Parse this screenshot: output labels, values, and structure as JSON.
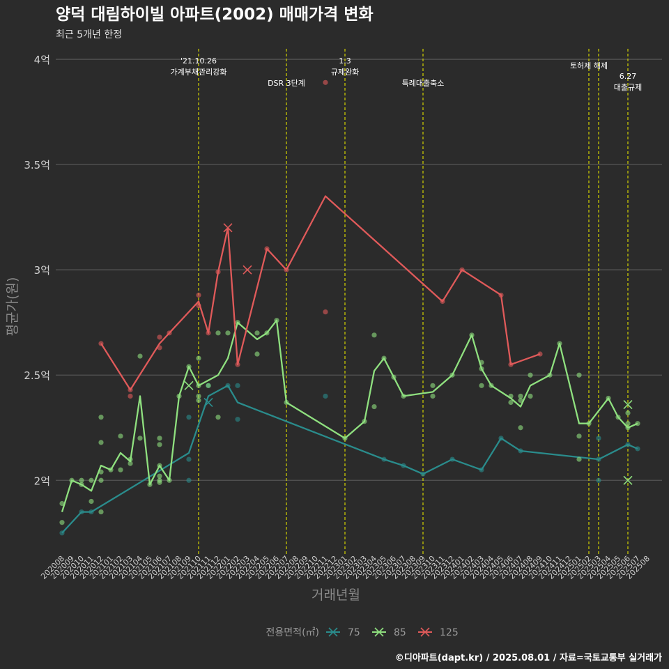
{
  "chart_data": {
    "type": "line",
    "title": "양덕 대림하이빌 아파트(2002) 매매가격 변화",
    "subtitle": "최근 5개년 한정",
    "xlabel": "거래년월",
    "ylabel": "평균가(원)",
    "caption": "©디아파트(dapt.kr) / 2025.08.01 / 자료=국토교통부 실거래가",
    "legend_title": "전용면적(㎡)",
    "legend_position": "bottom",
    "ylim": [
      1.65,
      4.05
    ],
    "y_ticks": [
      {
        "value": 2,
        "label": "2억"
      },
      {
        "value": 2.5,
        "label": "2.5억"
      },
      {
        "value": 3,
        "label": "3억"
      },
      {
        "value": 3.5,
        "label": "3.5억"
      },
      {
        "value": 4,
        "label": "4억"
      }
    ],
    "x_categories": [
      "202008",
      "202009",
      "202010",
      "202011",
      "202012",
      "202101",
      "202102",
      "202103",
      "202104",
      "202105",
      "202106",
      "202107",
      "202108",
      "202109",
      "202110",
      "202111",
      "202112",
      "202201",
      "202202",
      "202203",
      "202204",
      "202205",
      "202206",
      "202207",
      "202208",
      "202209",
      "202210",
      "202211",
      "202212",
      "202301",
      "202302",
      "202303",
      "202304",
      "202305",
      "202306",
      "202307",
      "202308",
      "202309",
      "202310",
      "202311",
      "202312",
      "202401",
      "202402",
      "202403",
      "202404",
      "202405",
      "202406",
      "202407",
      "202408",
      "202409",
      "202410",
      "202411",
      "202412",
      "202501",
      "202502",
      "202503",
      "202504",
      "202505",
      "202506",
      "202507",
      "202508"
    ],
    "grid": true,
    "events": [
      {
        "x": "202110",
        "lines": [
          "'21.10.26",
          "가계부채관리강화"
        ],
        "level": 0
      },
      {
        "x": "202207",
        "lines": [
          "DSR 3단계"
        ],
        "level": 2
      },
      {
        "x": "202301",
        "lines": [
          "1.3",
          "규제완화"
        ],
        "level": 0
      },
      {
        "x": "202309",
        "lines": [
          "특례대출축소"
        ],
        "level": 2
      },
      {
        "x": "202502",
        "lines": [
          "토허제 해제"
        ],
        "level": 1
      },
      {
        "x": "202503",
        "lines": [],
        "level": 1
      },
      {
        "x": "202506",
        "lines": [
          "6.27",
          "대출규제"
        ],
        "level": 3
      }
    ],
    "series": [
      {
        "name": "75",
        "color": "#2a8c8c",
        "line": [
          [
            "202008",
            1.75
          ],
          [
            "202010",
            1.85
          ],
          [
            "202011",
            1.85
          ],
          [
            "202109",
            2.13
          ],
          [
            "202111",
            2.4
          ],
          [
            "202201",
            2.45
          ],
          [
            "202202",
            2.37
          ],
          [
            "202305",
            2.1
          ],
          [
            "202307",
            2.07
          ],
          [
            "202309",
            2.03
          ],
          [
            "202312",
            2.1
          ],
          [
            "202403",
            2.05
          ],
          [
            "202405",
            2.2
          ],
          [
            "202407",
            2.14
          ],
          [
            "202503",
            2.1
          ],
          [
            "202506",
            2.17
          ],
          [
            "202507",
            2.15
          ]
        ],
        "points": [
          [
            "202008",
            1.75
          ],
          [
            "202010",
            1.85
          ],
          [
            "202011",
            1.85
          ],
          [
            "202109",
            2.0
          ],
          [
            "202109",
            2.1
          ],
          [
            "202109",
            2.3
          ],
          [
            "202111",
            2.45
          ],
          [
            "202201",
            2.45
          ],
          [
            "202202",
            2.29
          ],
          [
            "202202",
            2.45
          ],
          [
            "202211",
            2.4
          ],
          [
            "202305",
            2.1
          ],
          [
            "202307",
            2.07
          ],
          [
            "202309",
            2.03
          ],
          [
            "202312",
            2.1
          ],
          [
            "202403",
            2.05
          ],
          [
            "202405",
            2.2
          ],
          [
            "202407",
            2.14
          ],
          [
            "202503",
            2.0
          ],
          [
            "202503",
            2.1
          ],
          [
            "202503",
            2.2
          ],
          [
            "202506",
            2.17
          ],
          [
            "202507",
            2.15
          ]
        ],
        "crosses": [
          [
            "202111",
            2.37
          ]
        ]
      },
      {
        "name": "85",
        "color": "#8fe07f",
        "line": [
          [
            "202008",
            1.85
          ],
          [
            "202009",
            2.0
          ],
          [
            "202010",
            1.98
          ],
          [
            "202011",
            1.95
          ],
          [
            "202012",
            2.07
          ],
          [
            "202101",
            2.05
          ],
          [
            "202102",
            2.13
          ],
          [
            "202103",
            2.09
          ],
          [
            "202104",
            2.4
          ],
          [
            "202105",
            1.98
          ],
          [
            "202106",
            2.07
          ],
          [
            "202107",
            2.0
          ],
          [
            "202108",
            2.4
          ],
          [
            "202109",
            2.54
          ],
          [
            "202110",
            2.45
          ],
          [
            "202112",
            2.5
          ],
          [
            "202201",
            2.58
          ],
          [
            "202202",
            2.75
          ],
          [
            "202204",
            2.67
          ],
          [
            "202205",
            2.7
          ],
          [
            "202206",
            2.76
          ],
          [
            "202207",
            2.37
          ],
          [
            "202301",
            2.2
          ],
          [
            "202303",
            2.28
          ],
          [
            "202304",
            2.52
          ],
          [
            "202305",
            2.58
          ],
          [
            "202306",
            2.49
          ],
          [
            "202307",
            2.4
          ],
          [
            "202310",
            2.42
          ],
          [
            "202312",
            2.5
          ],
          [
            "202402",
            2.69
          ],
          [
            "202403",
            2.53
          ],
          [
            "202404",
            2.45
          ],
          [
            "202406",
            2.39
          ],
          [
            "202407",
            2.35
          ],
          [
            "202408",
            2.45
          ],
          [
            "202410",
            2.5
          ],
          [
            "202411",
            2.65
          ],
          [
            "202501",
            2.27
          ],
          [
            "202502",
            2.27
          ],
          [
            "202504",
            2.39
          ],
          [
            "202505",
            2.3
          ],
          [
            "202506",
            2.25
          ],
          [
            "202507",
            2.27
          ]
        ],
        "points": [
          [
            "202008",
            1.8
          ],
          [
            "202008",
            1.89
          ],
          [
            "202009",
            2.0
          ],
          [
            "202010",
            1.98
          ],
          [
            "202010",
            2.0
          ],
          [
            "202011",
            1.9
          ],
          [
            "202011",
            2.0
          ],
          [
            "202012",
            1.85
          ],
          [
            "202012",
            2.0
          ],
          [
            "202012",
            2.04
          ],
          [
            "202012",
            2.18
          ],
          [
            "202012",
            2.3
          ],
          [
            "202101",
            2.05
          ],
          [
            "202102",
            2.05
          ],
          [
            "202102",
            2.21
          ],
          [
            "202103",
            2.08
          ],
          [
            "202103",
            2.1
          ],
          [
            "202104",
            2.2
          ],
          [
            "202104",
            2.59
          ],
          [
            "202105",
            1.98
          ],
          [
            "202106",
            1.99
          ],
          [
            "202106",
            2.0
          ],
          [
            "202106",
            2.02
          ],
          [
            "202106",
            2.07
          ],
          [
            "202106",
            2.17
          ],
          [
            "202106",
            2.2
          ],
          [
            "202107",
            2.0
          ],
          [
            "202108",
            2.4
          ],
          [
            "202109",
            2.54
          ],
          [
            "202110",
            2.38
          ],
          [
            "202110",
            2.4
          ],
          [
            "202110",
            2.45
          ],
          [
            "202110",
            2.58
          ],
          [
            "202111",
            2.45
          ],
          [
            "202112",
            2.3
          ],
          [
            "202112",
            2.7
          ],
          [
            "202201",
            2.7
          ],
          [
            "202202",
            2.75
          ],
          [
            "202204",
            2.6
          ],
          [
            "202204",
            2.7
          ],
          [
            "202205",
            2.7
          ],
          [
            "202206",
            2.76
          ],
          [
            "202207",
            2.37
          ],
          [
            "202301",
            2.2
          ],
          [
            "202303",
            2.28
          ],
          [
            "202304",
            2.35
          ],
          [
            "202304",
            2.69
          ],
          [
            "202305",
            2.58
          ],
          [
            "202306",
            2.49
          ],
          [
            "202307",
            2.4
          ],
          [
            "202310",
            2.4
          ],
          [
            "202310",
            2.45
          ],
          [
            "202312",
            2.5
          ],
          [
            "202402",
            2.69
          ],
          [
            "202403",
            2.45
          ],
          [
            "202403",
            2.53
          ],
          [
            "202403",
            2.56
          ],
          [
            "202404",
            2.45
          ],
          [
            "202406",
            2.37
          ],
          [
            "202406",
            2.4
          ],
          [
            "202407",
            2.25
          ],
          [
            "202407",
            2.38
          ],
          [
            "202407",
            2.4
          ],
          [
            "202408",
            2.4
          ],
          [
            "202408",
            2.5
          ],
          [
            "202410",
            2.5
          ],
          [
            "202411",
            2.65
          ],
          [
            "202501",
            2.1
          ],
          [
            "202501",
            2.21
          ],
          [
            "202501",
            2.5
          ],
          [
            "202502",
            2.27
          ],
          [
            "202504",
            2.39
          ],
          [
            "202505",
            2.3
          ],
          [
            "202506",
            2.25
          ],
          [
            "202506",
            2.27
          ],
          [
            "202506",
            2.32
          ],
          [
            "202507",
            2.27
          ]
        ],
        "crosses": [
          [
            "202109",
            2.45
          ],
          [
            "202506",
            2.36
          ],
          [
            "202506",
            2.0
          ]
        ]
      },
      {
        "name": "125",
        "color": "#e05a5a",
        "line": [
          [
            "202012",
            2.65
          ],
          [
            "202103",
            2.43
          ],
          [
            "202106",
            2.65
          ],
          [
            "202107",
            2.7
          ],
          [
            "202110",
            2.85
          ],
          [
            "202111",
            2.7
          ],
          [
            "202112",
            2.99
          ],
          [
            "202201",
            3.2
          ],
          [
            "202202",
            2.55
          ],
          [
            "202205",
            3.1
          ],
          [
            "202207",
            3.0
          ],
          [
            "202211",
            3.35
          ],
          [
            "202311",
            2.85
          ],
          [
            "202401",
            3.0
          ],
          [
            "202405",
            2.88
          ],
          [
            "202406",
            2.55
          ],
          [
            "202409",
            2.6
          ]
        ],
        "points": [
          [
            "202012",
            2.65
          ],
          [
            "202103",
            2.4
          ],
          [
            "202103",
            2.43
          ],
          [
            "202106",
            2.63
          ],
          [
            "202106",
            2.68
          ],
          [
            "202107",
            2.7
          ],
          [
            "202110",
            2.83
          ],
          [
            "202110",
            2.88
          ],
          [
            "202111",
            2.7
          ],
          [
            "202112",
            2.99
          ],
          [
            "202202",
            2.55
          ],
          [
            "202205",
            3.1
          ],
          [
            "202207",
            3.0
          ],
          [
            "202211",
            2.8
          ],
          [
            "202211",
            3.89
          ],
          [
            "202311",
            2.85
          ],
          [
            "202401",
            3.0
          ],
          [
            "202405",
            2.88
          ],
          [
            "202406",
            2.55
          ],
          [
            "202409",
            2.6
          ]
        ],
        "crosses": [
          [
            "202201",
            3.2
          ],
          [
            "202203",
            3.0
          ]
        ]
      }
    ]
  }
}
